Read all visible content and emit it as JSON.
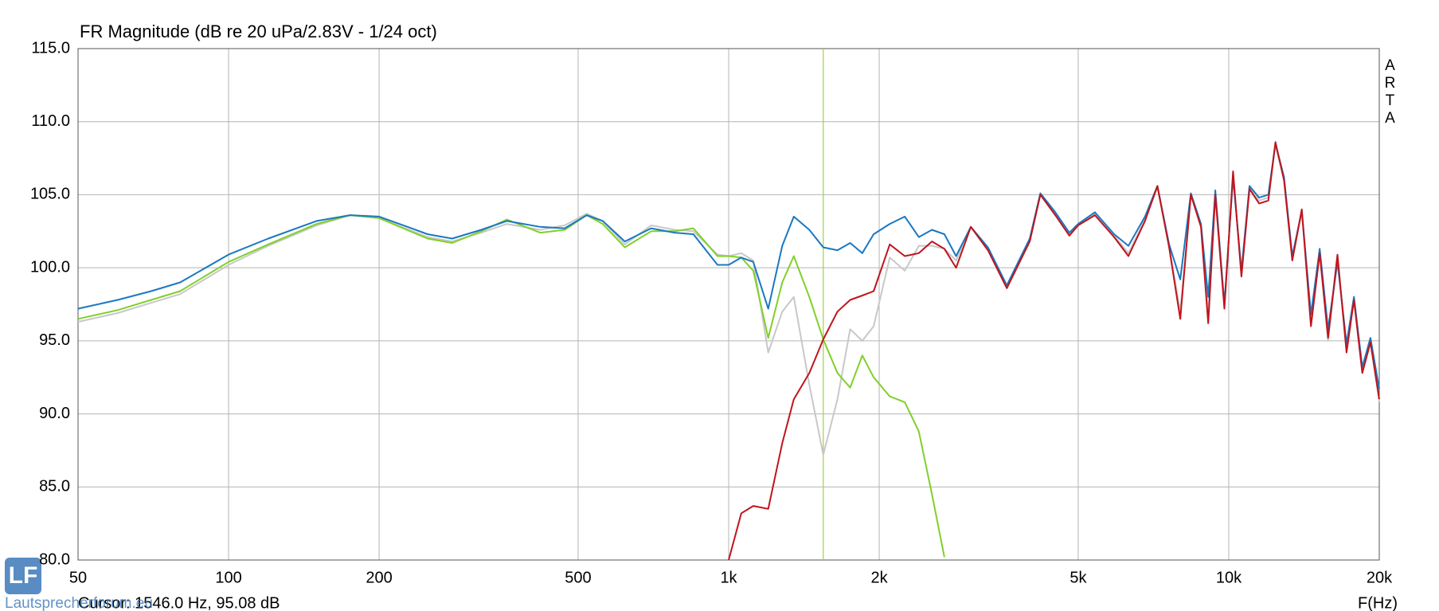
{
  "chart_data": {
    "type": "line",
    "title": "FR Magnitude (dB re 20 uPa/2.83V - 1/24 oct)",
    "x": [
      50,
      60,
      70,
      80,
      100,
      120,
      150,
      175,
      200,
      250,
      280,
      320,
      360,
      420,
      470,
      520,
      560,
      620,
      700,
      780,
      850,
      950,
      1000,
      1060,
      1120,
      1200,
      1280,
      1350,
      1450,
      1546,
      1650,
      1750,
      1850,
      1950,
      2100,
      2250,
      2400,
      2550,
      2700,
      2850,
      3050,
      3300,
      3600,
      4000,
      4200,
      4500,
      4800,
      5000,
      5400,
      5900,
      6300,
      6800,
      7200,
      7600,
      8000,
      8400,
      8800,
      9100,
      9400,
      9800,
      10200,
      10600,
      11000,
      11500,
      12000,
      12400,
      12900,
      13400,
      14000,
      14600,
      15200,
      15800,
      16500,
      17200,
      17800,
      18500,
      19200,
      20000
    ],
    "series": [
      {
        "color": "#c8c8c8",
        "values": [
          96.3,
          96.9,
          97.6,
          98.2,
          100.2,
          101.5,
          102.9,
          103.6,
          103.4,
          102.1,
          101.8,
          102.4,
          103.0,
          102.6,
          102.9,
          103.7,
          103.2,
          101.6,
          102.9,
          102.6,
          102.5,
          100.9,
          100.8,
          101.0,
          100.5,
          94.2,
          97.0,
          98.0,
          92.0,
          87.2,
          91.0,
          95.8,
          95.0,
          96.0,
          100.7,
          99.8,
          101.5,
          101.5,
          101.3,
          100.5,
          102.8,
          101.3,
          98.7,
          101.9,
          105.0,
          103.7,
          102.3,
          103.0,
          103.7,
          102.2,
          101.0,
          103.3,
          105.5,
          101.5,
          97.0,
          105.0,
          102.9,
          96.8,
          105.1,
          97.5,
          106.3,
          99.5,
          105.5,
          104.6,
          104.8,
          108.4,
          106.0,
          100.6,
          103.8,
          96.6,
          101.1,
          95.0,
          100.6,
          94.4,
          98.0,
          93.0,
          95.0,
          90.8
        ]
      },
      {
        "color": "#80d02a",
        "values": [
          96.5,
          97.1,
          97.8,
          98.4,
          100.4,
          101.6,
          103.0,
          103.6,
          103.4,
          102.0,
          101.7,
          102.5,
          103.3,
          102.4,
          102.6,
          103.6,
          103.0,
          101.4,
          102.5,
          102.5,
          102.7,
          100.8,
          100.8,
          100.7,
          99.8,
          95.2,
          99.0,
          100.8,
          98.0,
          95.1,
          92.8,
          91.8,
          94.0,
          92.5,
          91.2,
          90.8,
          88.8,
          84.5,
          80.2,
          null,
          null,
          null,
          null,
          null,
          null,
          null,
          null,
          null,
          null,
          null,
          null,
          null,
          null,
          null,
          null,
          null,
          null,
          null,
          null,
          null,
          null,
          null,
          null,
          null,
          null,
          null,
          null,
          null,
          null,
          null,
          null,
          null,
          null,
          null,
          null,
          null,
          null,
          null
        ]
      },
      {
        "color": "#1a78c2",
        "values": [
          97.2,
          97.8,
          98.4,
          99.0,
          100.9,
          102.0,
          103.2,
          103.6,
          103.5,
          102.3,
          102.0,
          102.6,
          103.2,
          102.8,
          102.7,
          103.6,
          103.2,
          101.8,
          102.7,
          102.4,
          102.3,
          100.2,
          100.2,
          100.7,
          100.4,
          97.2,
          101.5,
          103.5,
          102.6,
          101.4,
          101.2,
          101.7,
          101.0,
          102.3,
          103.0,
          103.5,
          102.1,
          102.6,
          102.3,
          100.8,
          102.8,
          101.4,
          98.8,
          102.0,
          105.1,
          103.8,
          102.4,
          103.0,
          103.8,
          102.3,
          101.5,
          103.5,
          105.6,
          101.6,
          99.2,
          105.1,
          103.0,
          98.0,
          105.3,
          97.5,
          106.2,
          99.8,
          105.6,
          104.8,
          105.0,
          108.5,
          106.2,
          100.8,
          103.9,
          96.8,
          101.3,
          95.8,
          100.4,
          94.8,
          98.0,
          93.2,
          95.2,
          91.7
        ]
      },
      {
        "color": "#c0141c",
        "values": [
          null,
          null,
          null,
          null,
          null,
          null,
          null,
          null,
          null,
          null,
          null,
          null,
          null,
          null,
          null,
          null,
          null,
          null,
          null,
          null,
          null,
          null,
          80.0,
          83.2,
          83.7,
          83.5,
          88.0,
          91.0,
          92.8,
          95.1,
          97.0,
          97.8,
          98.1,
          98.4,
          101.6,
          100.8,
          101.0,
          101.8,
          101.3,
          100.0,
          102.8,
          101.2,
          98.6,
          101.8,
          105.0,
          103.6,
          102.2,
          102.9,
          103.6,
          102.1,
          100.8,
          103.2,
          105.6,
          101.4,
          96.5,
          105.0,
          102.8,
          96.2,
          105.0,
          97.2,
          106.6,
          99.4,
          105.4,
          104.4,
          104.6,
          108.6,
          106.0,
          100.5,
          104.0,
          96.0,
          101.0,
          95.2,
          100.9,
          94.2,
          97.8,
          92.8,
          94.9,
          91.0
        ]
      }
    ],
    "xlim": [
      50,
      20000
    ],
    "ylim": [
      80,
      115
    ],
    "log_x": true,
    "grid": true,
    "xticks": [
      50,
      100,
      200,
      500,
      {
        "value": 1000,
        "label": "1k"
      },
      {
        "value": 2000,
        "label": "2k"
      },
      {
        "value": 5000,
        "label": "5k"
      },
      {
        "value": 10000,
        "label": "10k"
      },
      {
        "value": 20000,
        "label": "20k"
      }
    ],
    "yticks": [
      {
        "value": 80,
        "label": "80.0"
      },
      {
        "value": 85,
        "label": "85.0"
      },
      {
        "value": 90,
        "label": "90.0"
      },
      {
        "value": 95,
        "label": "95.0"
      },
      {
        "value": 100,
        "label": "100.0"
      },
      {
        "value": 105,
        "label": "105.0"
      },
      {
        "value": 110,
        "label": "110.0"
      },
      {
        "value": 115,
        "label": "115.0"
      }
    ],
    "xlabel": "F(Hz)",
    "cursor": {
      "x": 1546,
      "color": "#a6cc40",
      "label": "Cursor: 1546.0 Hz, 95.08 dB"
    },
    "side_label": "ARTA",
    "watermark": {
      "logo": "LF",
      "text": "Lautsprecherforum.eu"
    }
  }
}
